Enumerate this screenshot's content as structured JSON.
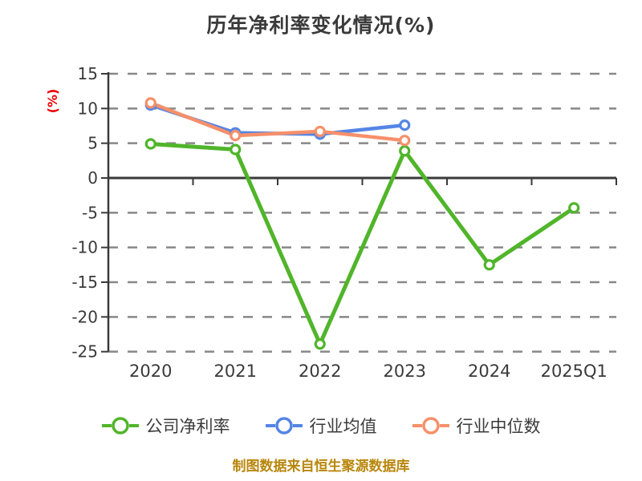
{
  "title": "历年净利率变化情况(%)",
  "y_axis_unit_label": "(%)",
  "footer_note": "制图数据来自恒生聚源数据库",
  "colors": {
    "background": "#ffffff",
    "title_text": "#3a3a3a",
    "tick_text": "#3a3a3a",
    "axis": "#3a3a3a",
    "gridline": "#888888",
    "y_unit_label": "#e80000",
    "footer_text": "#b8860b",
    "series_company": "#50b52a",
    "series_mean": "#5585e5",
    "series_median": "#f6906a"
  },
  "chart_data": {
    "type": "line",
    "categories": [
      "2020",
      "2021",
      "2022",
      "2023",
      "2024",
      "2025Q1"
    ],
    "series": [
      {
        "id": "company-net-margin",
        "name": "公司净利率",
        "color": "#50b52a",
        "values": [
          4.9,
          4.1,
          -23.9,
          3.9,
          -12.5,
          -4.3
        ]
      },
      {
        "id": "industry-mean",
        "name": "行业均值",
        "color": "#5585e5",
        "values": [
          10.5,
          6.5,
          6.3,
          7.6,
          null,
          null
        ]
      },
      {
        "id": "industry-median",
        "name": "行业中位数",
        "color": "#f6906a",
        "values": [
          10.8,
          6.1,
          6.7,
          5.4,
          null,
          null
        ]
      }
    ],
    "title": "历年净利率变化情况(%)",
    "xlabel": "",
    "ylabel": "(%)",
    "y_ticks": [
      15,
      10,
      5,
      0,
      -5,
      -10,
      -15,
      -20,
      -25
    ],
    "ylim": [
      -25,
      15
    ],
    "grid": "horizontal-dashed",
    "legend_position": "bottom",
    "marker": "circle-open"
  }
}
